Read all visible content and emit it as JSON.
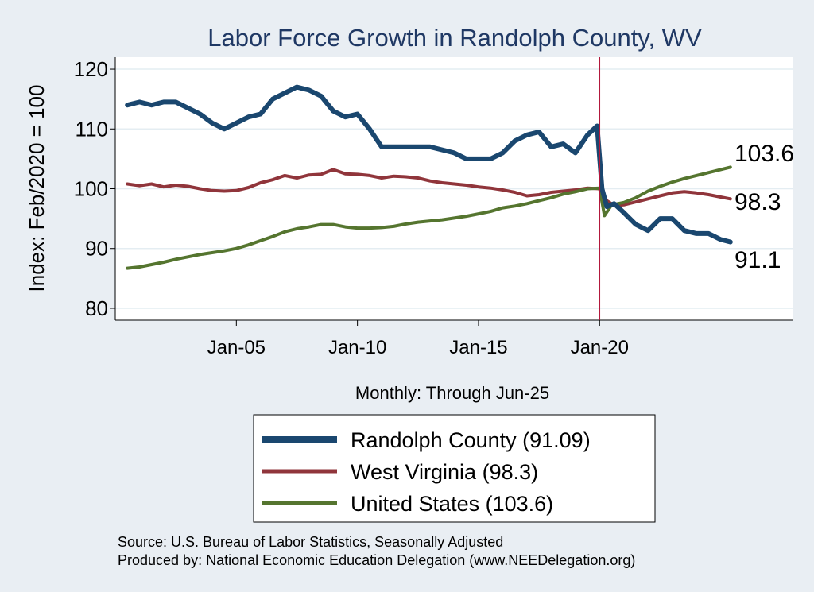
{
  "colors": {
    "background": "#e9eef3",
    "plot_background": "#ffffff",
    "gridline": "#e4edf2",
    "title": "#1f3864",
    "randolph": "#1a476f",
    "west_virginia": "#90353b",
    "united_states": "#55752f",
    "vline": "#b2183c",
    "axis": "#000000"
  },
  "chart_data": {
    "type": "line",
    "title": "Labor Force Growth in Randolph  County, WV",
    "xlabel": "Monthly: Through Jun-25",
    "ylabel": "Index: Feb/2020 = 100",
    "xlim": [
      2000.0,
      2028.0
    ],
    "ylim": [
      78,
      122
    ],
    "yticks": [
      80,
      90,
      100,
      110,
      120
    ],
    "ytick_labels": [
      "80",
      "90",
      "100",
      "110",
      "120"
    ],
    "xticks": [
      2005.0,
      2010.0,
      2015.0,
      2020.0
    ],
    "xtick_labels": [
      "Jan-05",
      "Jan-10",
      "Jan-15",
      "Jan-20"
    ],
    "vline_x": 2020.0,
    "series": [
      {
        "name": "Randolph  County",
        "legend_label": "Randolph  County (91.09)",
        "end_label": "91.1",
        "end_value": 91.09,
        "color_key": "randolph",
        "width": 6,
        "x": [
          2000.5,
          2001.0,
          2001.5,
          2002.0,
          2002.5,
          2003.0,
          2003.5,
          2004.0,
          2004.5,
          2005.0,
          2005.5,
          2006.0,
          2006.5,
          2007.0,
          2007.5,
          2008.0,
          2008.5,
          2009.0,
          2009.5,
          2010.0,
          2010.5,
          2011.0,
          2011.5,
          2012.0,
          2012.5,
          2013.0,
          2013.5,
          2014.0,
          2014.5,
          2015.0,
          2015.5,
          2016.0,
          2016.5,
          2017.0,
          2017.5,
          2018.0,
          2018.5,
          2019.0,
          2019.5,
          2019.9,
          2020.1,
          2020.3,
          2020.6,
          2021.0,
          2021.5,
          2022.0,
          2022.5,
          2023.0,
          2023.5,
          2024.0,
          2024.5,
          2025.0,
          2025.4
        ],
        "y": [
          114,
          114.5,
          114,
          114.5,
          114.5,
          113.5,
          112.5,
          111,
          110,
          111,
          112,
          112.5,
          115,
          116,
          117,
          116.5,
          115.5,
          113,
          112,
          112.5,
          110,
          107,
          107,
          107,
          107,
          107,
          106.5,
          106,
          105,
          105,
          105,
          106,
          108,
          109,
          109.5,
          107,
          107.5,
          106,
          109,
          110.5,
          100,
          97,
          97.5,
          96,
          94,
          93,
          95,
          95,
          93,
          92.5,
          92.5,
          91.5,
          91.09
        ]
      },
      {
        "name": "West Virginia",
        "legend_label": "West Virginia (98.3)",
        "end_label": "98.3",
        "end_value": 98.3,
        "color_key": "west_virginia",
        "width": 4,
        "x": [
          2000.5,
          2001.0,
          2001.5,
          2002.0,
          2002.5,
          2003.0,
          2003.5,
          2004.0,
          2004.5,
          2005.0,
          2005.5,
          2006.0,
          2006.5,
          2007.0,
          2007.5,
          2008.0,
          2008.5,
          2009.0,
          2009.5,
          2010.0,
          2010.5,
          2011.0,
          2011.5,
          2012.0,
          2012.5,
          2013.0,
          2013.5,
          2014.0,
          2014.5,
          2015.0,
          2015.5,
          2016.0,
          2016.5,
          2017.0,
          2017.5,
          2018.0,
          2018.5,
          2019.0,
          2019.5,
          2020.0,
          2020.3,
          2020.6,
          2021.0,
          2021.5,
          2022.0,
          2022.5,
          2023.0,
          2023.5,
          2024.0,
          2024.5,
          2025.0,
          2025.4
        ],
        "y": [
          100.8,
          100.5,
          100.8,
          100.3,
          100.6,
          100.4,
          100,
          99.7,
          99.6,
          99.7,
          100.2,
          101,
          101.5,
          102.2,
          101.8,
          102.3,
          102.4,
          103.2,
          102.5,
          102.4,
          102.2,
          101.8,
          102.1,
          102,
          101.8,
          101.3,
          101,
          100.8,
          100.6,
          100.3,
          100.1,
          99.8,
          99.4,
          98.8,
          99,
          99.4,
          99.6,
          99.8,
          100.1,
          100,
          98,
          97.2,
          97.3,
          97.8,
          98.3,
          98.8,
          99.3,
          99.5,
          99.3,
          99,
          98.6,
          98.3
        ]
      },
      {
        "name": "United States",
        "legend_label": "United States (103.6)",
        "end_label": "103.6",
        "end_value": 103.6,
        "color_key": "united_states",
        "width": 4,
        "x": [
          2000.5,
          2001.0,
          2001.5,
          2002.0,
          2002.5,
          2003.0,
          2003.5,
          2004.0,
          2004.5,
          2005.0,
          2005.5,
          2006.0,
          2006.5,
          2007.0,
          2007.5,
          2008.0,
          2008.5,
          2009.0,
          2009.5,
          2010.0,
          2010.5,
          2011.0,
          2011.5,
          2012.0,
          2012.5,
          2013.0,
          2013.5,
          2014.0,
          2014.5,
          2015.0,
          2015.5,
          2016.0,
          2016.5,
          2017.0,
          2017.5,
          2018.0,
          2018.5,
          2019.0,
          2019.5,
          2020.0,
          2020.2,
          2020.5,
          2021.0,
          2021.5,
          2022.0,
          2022.5,
          2023.0,
          2023.5,
          2024.0,
          2024.5,
          2025.0,
          2025.4
        ],
        "y": [
          86.7,
          86.9,
          87.3,
          87.7,
          88.2,
          88.6,
          89,
          89.3,
          89.6,
          90,
          90.6,
          91.3,
          92,
          92.8,
          93.3,
          93.6,
          94,
          94,
          93.6,
          93.4,
          93.4,
          93.5,
          93.7,
          94.1,
          94.4,
          94.6,
          94.8,
          95.1,
          95.4,
          95.8,
          96.2,
          96.8,
          97.1,
          97.5,
          98,
          98.5,
          99.1,
          99.5,
          100,
          100.1,
          95.5,
          97.3,
          97.7,
          98.5,
          99.6,
          100.4,
          101.1,
          101.7,
          102.2,
          102.7,
          103.2,
          103.6
        ]
      }
    ]
  },
  "source": {
    "line1": "Source: U.S. Bureau of Labor Statistics, Seasonally Adjusted",
    "line2": "Produced by: National Economic Education Delegation (www.NEEDelegation.org)"
  }
}
